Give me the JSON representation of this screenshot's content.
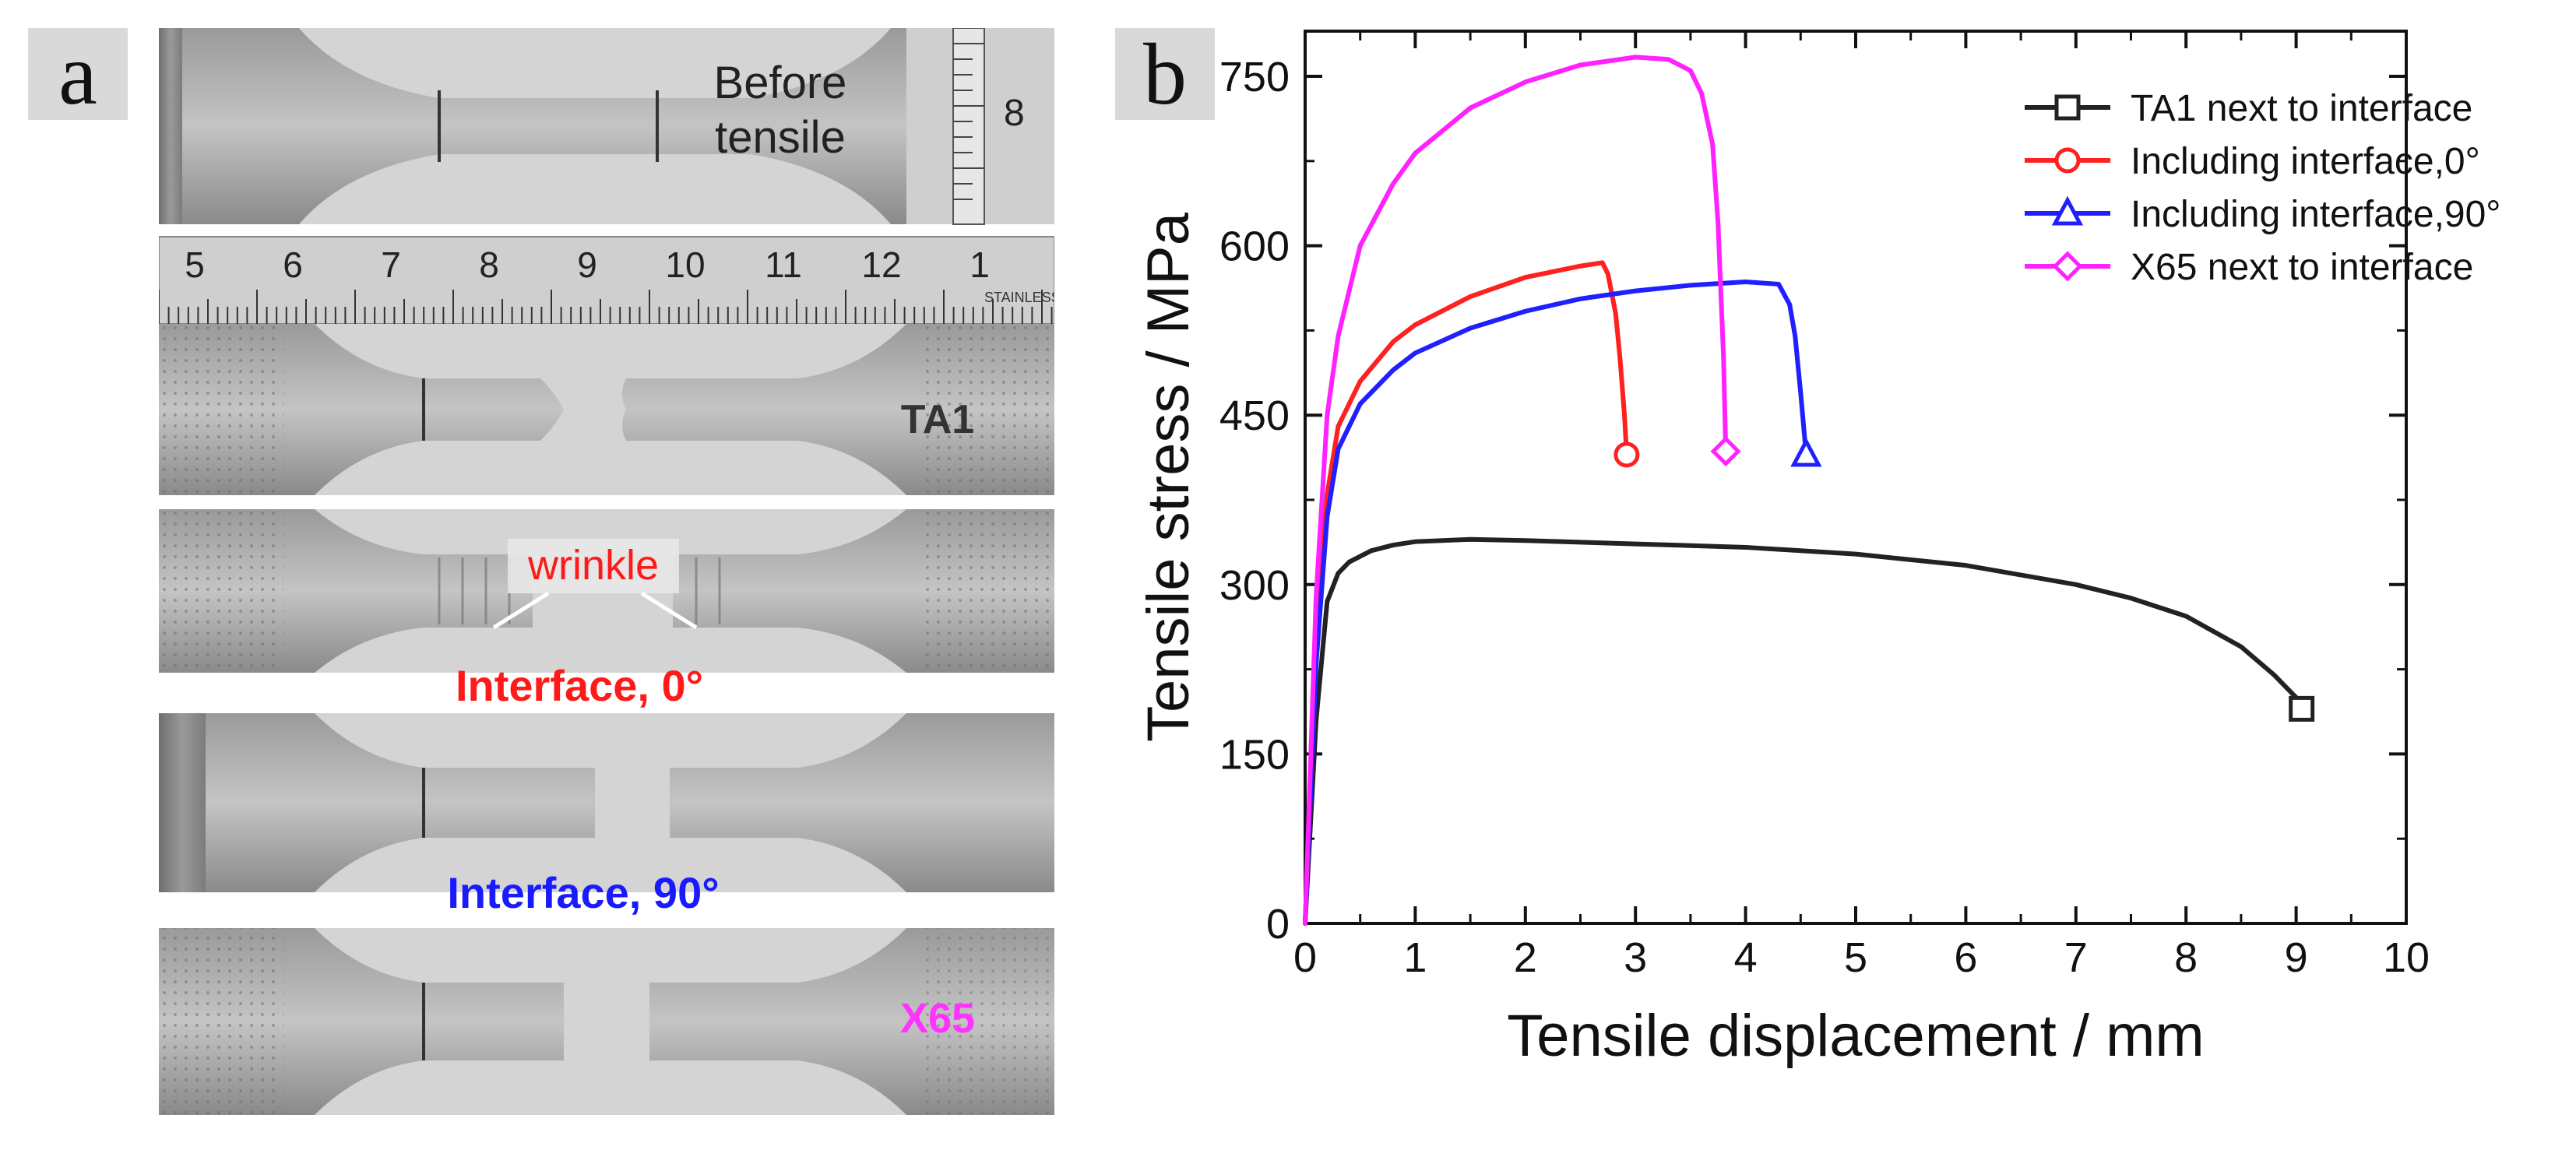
{
  "panel_a": {
    "tag": "a",
    "before_label_line1": "Before",
    "before_label_line2": "tensile",
    "ruler_numbers": [
      "5",
      "6",
      "7",
      "8",
      "9",
      "10",
      "11",
      "12",
      "1"
    ],
    "ruler_brand": "STAINLESS",
    "small_ruler_mark": "8",
    "samples": [
      {
        "label": "TA1",
        "color": "#333333"
      },
      {
        "label": "Interface, 0°",
        "color": "#ff1a1a"
      },
      {
        "label": "Interface, 90°",
        "color": "#1a1aff"
      },
      {
        "label": "X65",
        "color": "#ff33ff"
      }
    ],
    "wrinkle_label": "wrinkle",
    "wrinkle_color": "#ff1a1a"
  },
  "panel_b": {
    "tag": "b"
  },
  "chart_data": {
    "type": "line",
    "xlabel": "Tensile displacement / mm",
    "ylabel": "Tensile stress / MPa",
    "xlim": [
      0,
      10
    ],
    "ylim": [
      0,
      790
    ],
    "x_ticks": [
      0,
      1,
      2,
      3,
      4,
      5,
      6,
      7,
      8,
      9,
      10
    ],
    "y_ticks": [
      0,
      150,
      300,
      450,
      600,
      750
    ],
    "legend_position": "top-right",
    "series": [
      {
        "name": "TA1 next to interface",
        "color": "#222222",
        "marker": "square",
        "marker_point": [
          9.05,
          190
        ],
        "x": [
          0,
          0.1,
          0.2,
          0.3,
          0.4,
          0.6,
          0.8,
          1.0,
          1.5,
          2.0,
          3.0,
          4.0,
          5.0,
          6.0,
          7.0,
          7.5,
          8.0,
          8.5,
          8.8,
          9.0,
          9.05
        ],
        "y": [
          0,
          180,
          285,
          310,
          320,
          330,
          335,
          338,
          340,
          339,
          336,
          333,
          327,
          317,
          300,
          288,
          272,
          245,
          220,
          200,
          190
        ]
      },
      {
        "name": "Including interface,0°",
        "color": "#ff2020",
        "marker": "circle",
        "marker_point": [
          2.92,
          415
        ],
        "x": [
          0,
          0.1,
          0.2,
          0.3,
          0.5,
          0.8,
          1.0,
          1.5,
          2.0,
          2.5,
          2.7,
          2.75,
          2.82,
          2.86,
          2.9,
          2.92
        ],
        "y": [
          0,
          250,
          380,
          440,
          480,
          515,
          530,
          555,
          572,
          582,
          585,
          575,
          540,
          500,
          450,
          415
        ]
      },
      {
        "name": "Including interface,90°",
        "color": "#2020ff",
        "marker": "triangle",
        "marker_point": [
          4.55,
          415
        ],
        "x": [
          0,
          0.1,
          0.2,
          0.3,
          0.5,
          0.8,
          1.0,
          1.5,
          2.0,
          2.5,
          3.0,
          3.5,
          4.0,
          4.3,
          4.4,
          4.45,
          4.5,
          4.55
        ],
        "y": [
          0,
          230,
          360,
          420,
          460,
          490,
          505,
          527,
          542,
          553,
          560,
          565,
          568,
          566,
          548,
          520,
          470,
          415
        ]
      },
      {
        "name": "X65 next to interface",
        "color": "#ff22ff",
        "marker": "diamond",
        "marker_point": [
          3.82,
          418
        ],
        "x": [
          0,
          0.1,
          0.2,
          0.3,
          0.5,
          0.8,
          1.0,
          1.5,
          2.0,
          2.5,
          3.0,
          3.3,
          3.5,
          3.6,
          3.7,
          3.75,
          3.8,
          3.82
        ],
        "y": [
          0,
          290,
          450,
          520,
          600,
          655,
          682,
          722,
          745,
          760,
          767,
          765,
          755,
          735,
          690,
          620,
          500,
          418
        ]
      }
    ]
  }
}
